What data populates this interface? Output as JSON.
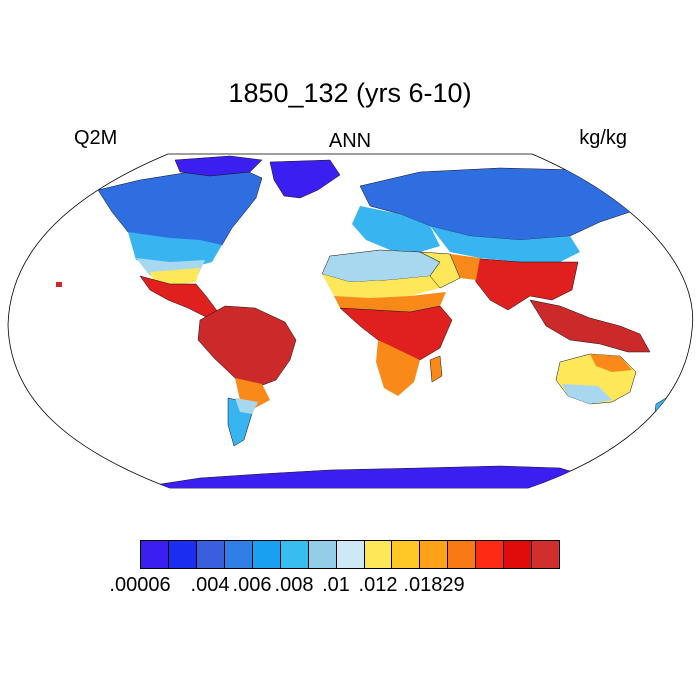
{
  "title": "1850_132 (yrs 6-10)",
  "left_label": "Q2M",
  "center_label": "ANN",
  "right_label": "kg/kg",
  "colors": {
    "ocean": "#ffffff",
    "outline": "#000000",
    "polar": "#3b1ef0",
    "cold": "#2f6ee0",
    "mid": "#38b4f0",
    "light": "#a7d8f0",
    "warm": "#ffe75a",
    "hot": "#f98a1a",
    "humid": "#e01f1f",
    "tropical": "#cc2a2a"
  },
  "colorbar": {
    "colors": [
      "#3b1ef0",
      "#1a2df0",
      "#3b5fdc",
      "#2f7fe6",
      "#1aa0f0",
      "#38bdf0",
      "#93cde8",
      "#cfe8f5",
      "#ffe75a",
      "#ffc826",
      "#ffa21a",
      "#f97a14",
      "#ff2a14",
      "#e00b0b",
      "#d12e2e"
    ],
    "labels": [
      ".00006",
      ".004",
      ".006",
      ".008",
      ".01",
      ".012",
      ".01829"
    ],
    "label_positions": [
      0,
      2.5,
      4,
      5.5,
      7,
      8.5,
      10.5
    ]
  }
}
